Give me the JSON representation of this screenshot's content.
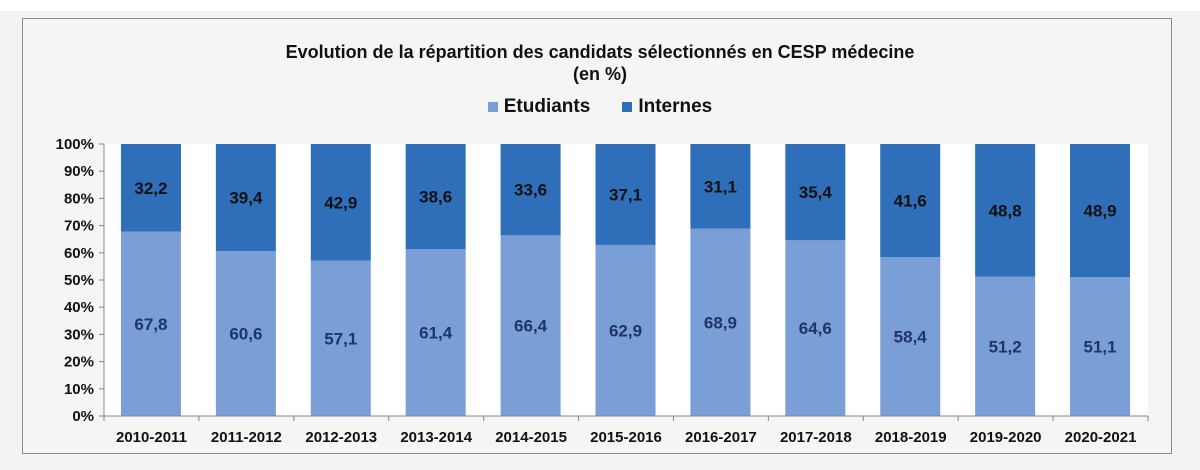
{
  "chart_data": {
    "type": "bar",
    "stacked": true,
    "title": "Evolution de la répartition des candidats sélectionnés  en CESP médecine",
    "subtitle": "(en %)",
    "xlabel": "",
    "ylabel": "",
    "ylim": [
      0,
      100
    ],
    "yticks": [
      "0%",
      "10%",
      "20%",
      "30%",
      "40%",
      "50%",
      "60%",
      "70%",
      "80%",
      "90%",
      "100%"
    ],
    "legend_position": "top",
    "categories": [
      "2010-2011",
      "2011-2012",
      "2012-2013",
      "2013-2014",
      "2014-2015",
      "2015-2016",
      "2016-2017",
      "2017-2018",
      "2018-2019",
      "2019-2020",
      "2020-2021"
    ],
    "series": [
      {
        "name": "Etudiants",
        "color": "#7a9fd6",
        "label_color": "#1f3566",
        "values": [
          67.8,
          60.6,
          57.1,
          61.4,
          66.4,
          62.9,
          68.9,
          64.6,
          58.4,
          51.2,
          51.1
        ],
        "labels": [
          "67,8",
          "60,6",
          "57,1",
          "61,4",
          "66,4",
          "62,9",
          "68,9",
          "64,6",
          "58,4",
          "51,2",
          "51,1"
        ]
      },
      {
        "name": "Internes",
        "color": "#2f6eb8",
        "label_color": "#111111",
        "values": [
          32.2,
          39.4,
          42.9,
          38.6,
          33.6,
          37.1,
          31.1,
          35.4,
          41.6,
          48.8,
          48.9
        ],
        "labels": [
          "32,2",
          "39,4",
          "42,9",
          "38,6",
          "33,6",
          "37,1",
          "31,1",
          "35,4",
          "41,6",
          "48,8",
          "48,9"
        ]
      }
    ]
  }
}
